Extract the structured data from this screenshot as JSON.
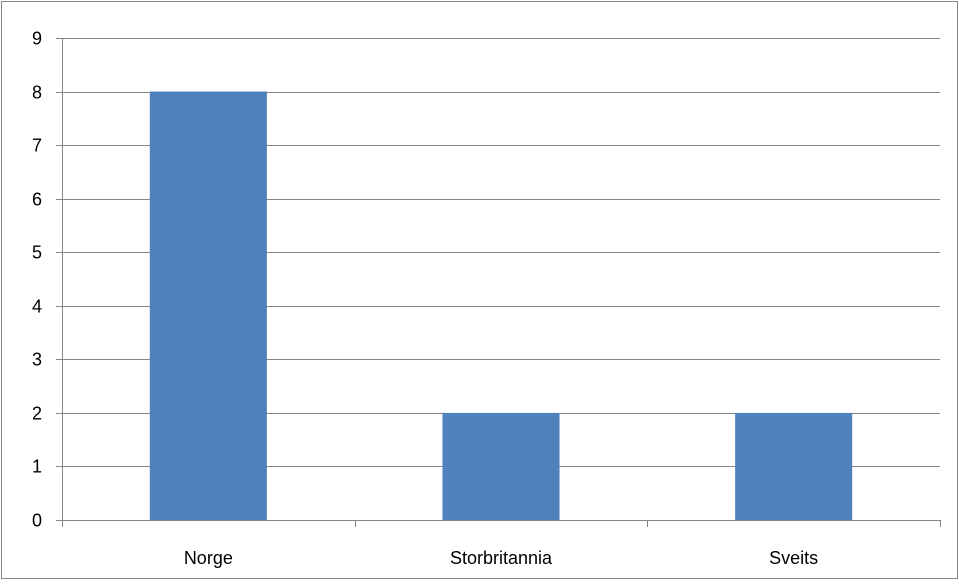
{
  "chart_data": {
    "type": "bar",
    "categories": [
      "Norge",
      "Storbritannia",
      "Sveits"
    ],
    "values": [
      8,
      2,
      2
    ],
    "ylim": [
      0,
      9
    ],
    "yticks": [
      "0",
      "1",
      "2",
      "3",
      "4",
      "5",
      "6",
      "7",
      "8",
      "9"
    ],
    "grid": true,
    "legend": "none"
  },
  "colors": {
    "bar": "#4F81BD",
    "gridline": "#868686",
    "axis": "#868686",
    "border": "#868686"
  }
}
